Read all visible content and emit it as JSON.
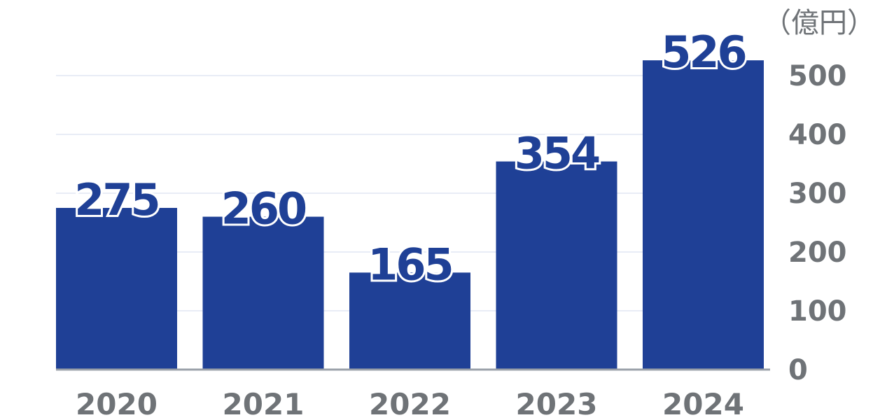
{
  "chart_data": {
    "type": "bar",
    "categories": [
      "2020",
      "2021",
      "2022",
      "2023",
      "2024"
    ],
    "values": [
      275,
      260,
      165,
      354,
      526
    ],
    "yticks": [
      "0",
      "100",
      "200",
      "300",
      "400",
      "500"
    ],
    "ylim": [
      0,
      530
    ],
    "unit": "（億円）",
    "grid": true,
    "y_axis_side": "right",
    "colors": {
      "bar": "#1f4096",
      "grid": "#e8ecf6",
      "tick": "#6f7377",
      "baseline": "#9aa0a8"
    }
  }
}
